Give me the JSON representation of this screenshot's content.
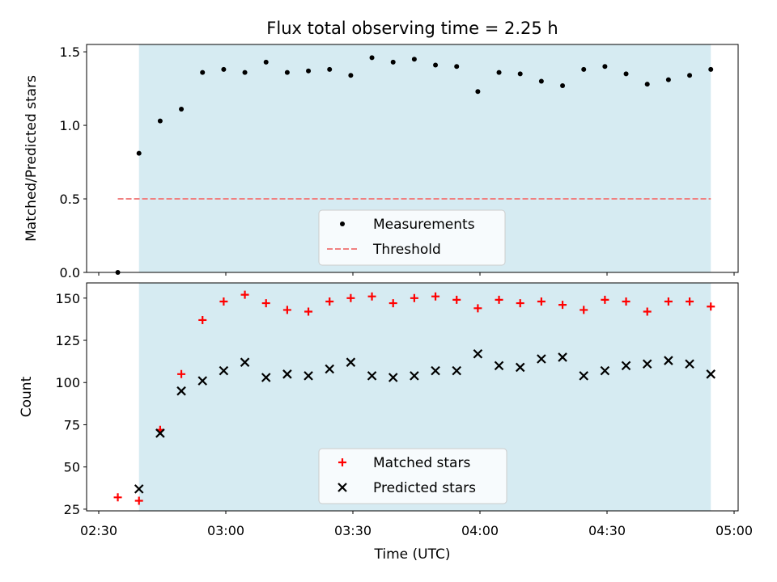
{
  "chart_data": [
    {
      "type": "scatter",
      "title": "Flux total observing time = 2.25 h",
      "ylabel": "Matched/Predicted stars",
      "xlabel": "",
      "ylim": [
        0,
        1.55
      ],
      "yticks": [
        0.0,
        0.5,
        1.0,
        1.5
      ],
      "ytick_labels": [
        "0.0",
        "0.5",
        "1.0",
        "1.5"
      ],
      "xticks": [
        "02:30",
        "03:00",
        "03:30",
        "04:00",
        "04:30",
        "05:00"
      ],
      "shaded_region": {
        "start": "02:39:30",
        "end": "04:54:30",
        "color": "#add8e6"
      },
      "legend_placement": "lower-center",
      "series": [
        {
          "name": "Measurements",
          "marker": "dot",
          "color": "#000000",
          "x": [
            "02:34:30",
            "02:39:30",
            "02:44:30",
            "02:49:30",
            "02:54:30",
            "02:59:30",
            "03:04:30",
            "03:09:30",
            "03:14:30",
            "03:19:30",
            "03:24:30",
            "03:29:30",
            "03:34:30",
            "03:39:30",
            "03:44:30",
            "03:49:30",
            "03:54:30",
            "03:59:30",
            "04:04:30",
            "04:09:30",
            "04:14:30",
            "04:19:30",
            "04:24:30",
            "04:29:30",
            "04:34:30",
            "04:39:30",
            "04:44:30",
            "04:49:30",
            "04:54:30"
          ],
          "y": [
            0.0,
            0.81,
            1.03,
            1.11,
            1.36,
            1.38,
            1.36,
            1.43,
            1.36,
            1.37,
            1.38,
            1.34,
            1.46,
            1.43,
            1.45,
            1.41,
            1.4,
            1.23,
            1.36,
            1.35,
            1.3,
            1.27,
            1.38,
            1.4,
            1.35,
            1.28,
            1.31,
            1.34,
            1.38
          ]
        },
        {
          "name": "Threshold",
          "style": "dashed",
          "color": "#f08080",
          "x": [
            "02:34:30",
            "04:54:30"
          ],
          "y": [
            0.5,
            0.5
          ]
        }
      ]
    },
    {
      "type": "scatter",
      "title": "",
      "ylabel": "Count",
      "xlabel": "Time (UTC)",
      "ylim": [
        24,
        159
      ],
      "yticks": [
        25,
        50,
        75,
        100,
        125,
        150
      ],
      "ytick_labels": [
        "25",
        "50",
        "75",
        "100",
        "125",
        "150"
      ],
      "xticks": [
        "02:30",
        "03:00",
        "03:30",
        "04:00",
        "04:30",
        "05:00"
      ],
      "shaded_region": {
        "start": "02:39:30",
        "end": "04:54:30",
        "color": "#add8e6"
      },
      "legend_placement": "lower-center",
      "series": [
        {
          "name": "Matched stars",
          "marker": "plus",
          "color": "#ff0000",
          "x": [
            "02:34:30",
            "02:39:30",
            "02:44:30",
            "02:49:30",
            "02:54:30",
            "02:59:30",
            "03:04:30",
            "03:09:30",
            "03:14:30",
            "03:19:30",
            "03:24:30",
            "03:29:30",
            "03:34:30",
            "03:39:30",
            "03:44:30",
            "03:49:30",
            "03:54:30",
            "03:59:30",
            "04:04:30",
            "04:09:30",
            "04:14:30",
            "04:19:30",
            "04:24:30",
            "04:29:30",
            "04:34:30",
            "04:39:30",
            "04:44:30",
            "04:49:30",
            "04:54:30"
          ],
          "y": [
            32,
            30,
            72,
            105,
            137,
            148,
            152,
            147,
            143,
            142,
            148,
            150,
            151,
            147,
            150,
            151,
            149,
            144,
            149,
            147,
            148,
            146,
            143,
            149,
            148,
            142,
            148,
            148,
            145
          ]
        },
        {
          "name": "Predicted stars",
          "marker": "x",
          "color": "#000000",
          "x": [
            "02:39:30",
            "02:44:30",
            "02:49:30",
            "02:54:30",
            "02:59:30",
            "03:04:30",
            "03:09:30",
            "03:14:30",
            "03:19:30",
            "03:24:30",
            "03:29:30",
            "03:34:30",
            "03:39:30",
            "03:44:30",
            "03:49:30",
            "03:54:30",
            "03:59:30",
            "04:04:30",
            "04:09:30",
            "04:14:30",
            "04:19:30",
            "04:24:30",
            "04:29:30",
            "04:34:30",
            "04:39:30",
            "04:44:30",
            "04:49:30",
            "04:54:30"
          ],
          "y": [
            37,
            70,
            95,
            101,
            107,
            112,
            103,
            105,
            104,
            108,
            112,
            104,
            103,
            104,
            107,
            107,
            117,
            110,
            109,
            114,
            115,
            104,
            107,
            110,
            111,
            113,
            111,
            105
          ]
        }
      ]
    }
  ]
}
